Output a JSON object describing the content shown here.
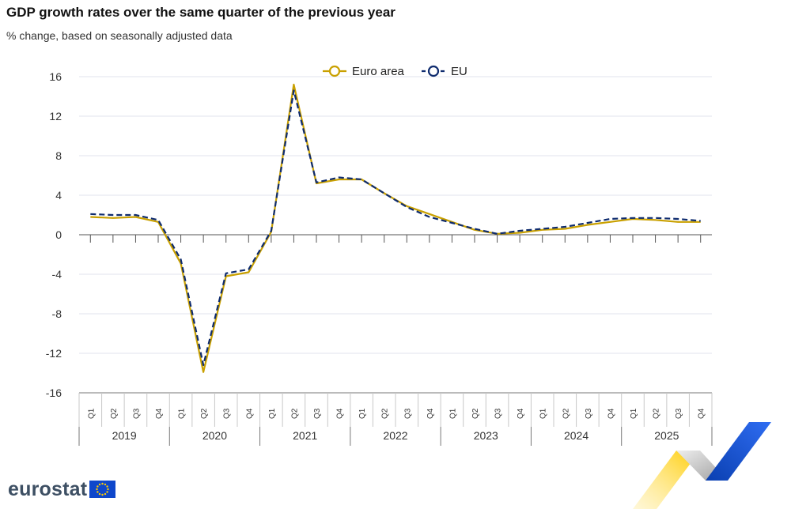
{
  "header": {
    "title": "GDP growth rates over the same quarter of the previous year",
    "subtitle": "% change, based on seasonally adjusted data"
  },
  "branding": {
    "logo_text": "eurostat",
    "flag_icon": "eu-flag-icon",
    "colors": {
      "flag_blue": "#0e47cb",
      "star_yellow": "#ffcc00",
      "logo_text": "#3d4f63"
    }
  },
  "chart_data": {
    "type": "line",
    "title": "GDP growth rates over the same quarter of the previous year",
    "subtitle": "% change, based on seasonally adjusted data",
    "xlabel": "",
    "ylabel": "",
    "ylim": [
      -16,
      16
    ],
    "yticks": [
      16,
      12,
      8,
      4,
      0,
      -4,
      -8,
      -12,
      -16
    ],
    "grid": "horizontal",
    "legend_position": "top-center",
    "years": [
      "2019",
      "2020",
      "2021",
      "2022",
      "2023",
      "2024",
      "2025"
    ],
    "quarters": [
      "Q1",
      "Q2",
      "Q3",
      "Q4"
    ],
    "categories": [
      "2019-Q1",
      "2019-Q2",
      "2019-Q3",
      "2019-Q4",
      "2020-Q1",
      "2020-Q2",
      "2020-Q3",
      "2020-Q4",
      "2021-Q1",
      "2021-Q2",
      "2021-Q3",
      "2021-Q4",
      "2022-Q1",
      "2022-Q2",
      "2022-Q3",
      "2022-Q4",
      "2023-Q1",
      "2023-Q2",
      "2023-Q3",
      "2023-Q4",
      "2024-Q1",
      "2024-Q2",
      "2024-Q3",
      "2024-Q4",
      "2025-Q1",
      "2025-Q2",
      "2025-Q3",
      "2025-Q4"
    ],
    "series": [
      {
        "name": "Euro area",
        "color": "#c9a000",
        "style": "solid",
        "values": [
          1.8,
          1.7,
          1.8,
          1.3,
          -2.9,
          -13.9,
          -4.2,
          -3.8,
          0.3,
          15.2,
          5.2,
          5.6,
          5.6,
          4.2,
          2.9,
          2.1,
          1.3,
          0.5,
          0.1,
          0.2,
          0.5,
          0.6,
          1.0,
          1.3,
          1.6,
          1.5,
          1.3,
          1.3
        ]
      },
      {
        "name": "EU",
        "color": "#0e2b6e",
        "style": "dashed",
        "values": [
          2.1,
          2.0,
          2.0,
          1.5,
          -2.5,
          -13.2,
          -3.9,
          -3.5,
          0.4,
          14.6,
          5.3,
          5.8,
          5.6,
          4.2,
          2.8,
          1.8,
          1.2,
          0.6,
          0.1,
          0.4,
          0.6,
          0.8,
          1.2,
          1.6,
          1.7,
          1.7,
          1.6,
          1.4
        ]
      }
    ]
  }
}
